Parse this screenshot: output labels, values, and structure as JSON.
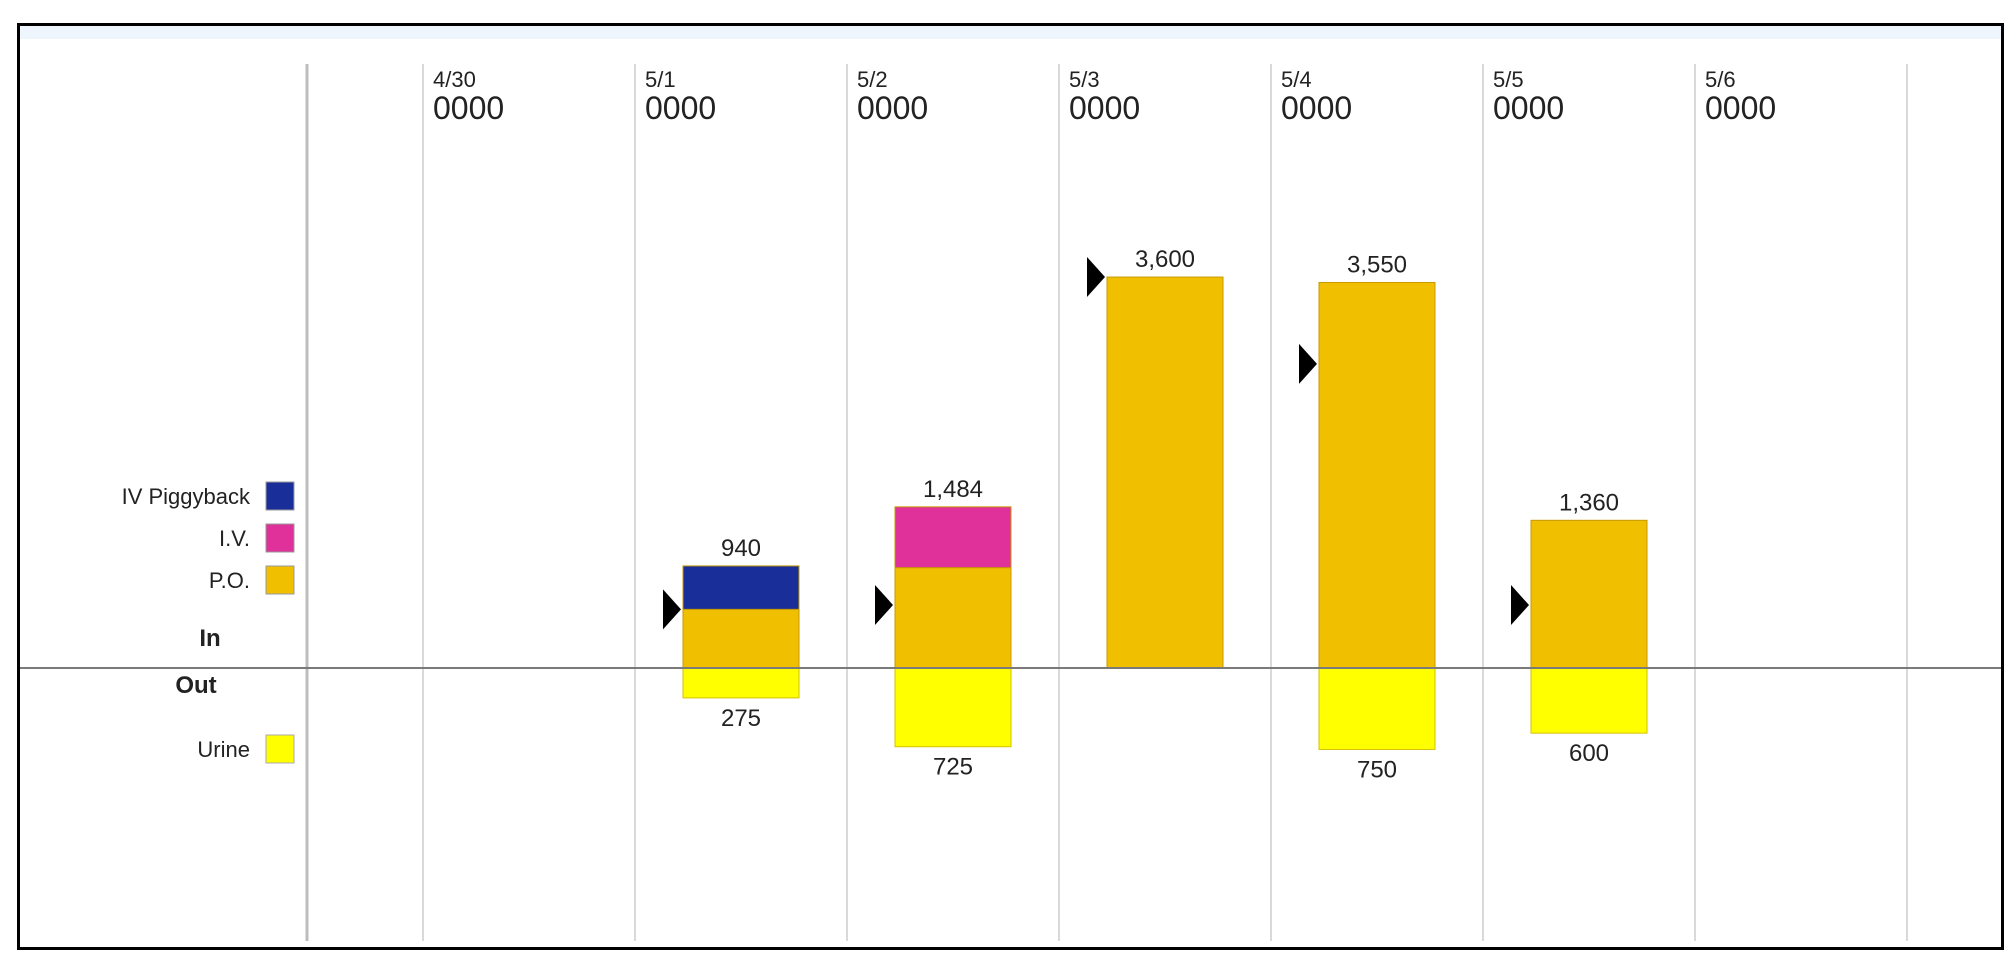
{
  "chart_data": {
    "type": "bar",
    "stacked": true,
    "categories": [
      {
        "date": "4/30",
        "time": "0000"
      },
      {
        "date": "5/1",
        "time": "0000"
      },
      {
        "date": "5/2",
        "time": "0000"
      },
      {
        "date": "5/3",
        "time": "0000"
      },
      {
        "date": "5/4",
        "time": "0000"
      },
      {
        "date": "5/5",
        "time": "0000"
      },
      {
        "date": "5/6",
        "time": "0000"
      }
    ],
    "in_label": "In",
    "out_label": "Out",
    "in_series": [
      {
        "name": "P.O.",
        "color": "#f0bf00",
        "values": [
          0,
          540,
          924,
          3600,
          3550,
          1360,
          0
        ]
      },
      {
        "name": "I.V.",
        "color": "#e0309a",
        "values": [
          0,
          0,
          560,
          0,
          0,
          0,
          0
        ]
      },
      {
        "name": "IV Piggyback",
        "color": "#1a2e9a",
        "values": [
          0,
          400,
          0,
          0,
          0,
          0,
          0
        ]
      }
    ],
    "out_series": [
      {
        "name": "Urine",
        "color": "#ffff00",
        "values": [
          0,
          275,
          725,
          0,
          750,
          600,
          0
        ]
      }
    ],
    "in_totals": [
      "",
      "940",
      "1,484",
      "3,600",
      "3,550",
      "1,360",
      ""
    ],
    "out_totals": [
      "",
      "275",
      "725",
      "",
      "750",
      "600",
      ""
    ],
    "markers": [
      {
        "category": 1,
        "value": 540
      },
      {
        "category": 2,
        "value": 580
      },
      {
        "category": 3,
        "value": 3600
      },
      {
        "category": 4,
        "value": 2800
      },
      {
        "category": 5,
        "value": 580
      }
    ],
    "in_legend_order": [
      "IV Piggyback",
      "I.V.",
      "P.O."
    ],
    "grid": true
  }
}
